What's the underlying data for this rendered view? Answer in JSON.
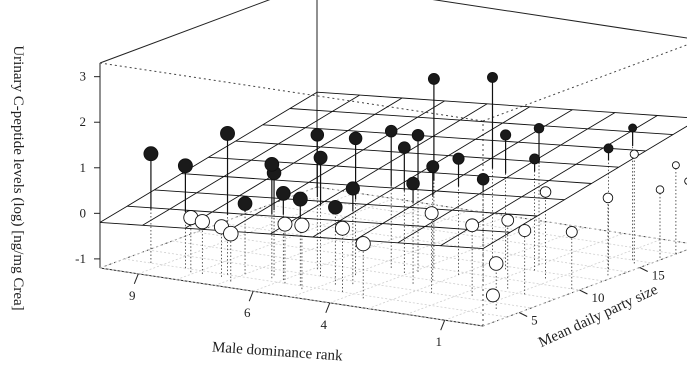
{
  "chart_data": {
    "type": "scatter",
    "subtype": "3d-scatter-with-regression-plane",
    "title": "",
    "zlabel": "Urinary C-peptide levels (log) [ng/mg Crea]",
    "xlabel": "Male dominance rank",
    "ylabel": "Mean daily party size",
    "z_ticks": [
      "-1",
      "0",
      "1",
      "2",
      "3"
    ],
    "x_ticks": [
      "9",
      "6",
      "4",
      "1"
    ],
    "y_ticks": [
      "5",
      "10",
      "15"
    ],
    "zlim": [
      -1.2,
      3.3
    ],
    "xlim": [
      10,
      0
    ],
    "ylim": [
      2,
      20
    ],
    "grid_floor": true,
    "regression_plane": true,
    "drop_lines": true,
    "marker_fill": {
      "above_plane": "#1a1a1a",
      "below_plane": "#ffffff"
    },
    "points": [
      {
        "rank": 9.3,
        "party": 4.0,
        "z": 1.2
      },
      {
        "rank": 8.4,
        "party": 4.0,
        "z": 1.05
      },
      {
        "rank": 8.1,
        "party": 3.5,
        "z": 0.0
      },
      {
        "rank": 7.8,
        "party": 3.5,
        "z": -0.05
      },
      {
        "rank": 7.3,
        "party": 4.0,
        "z": 1.9
      },
      {
        "rank": 7.3,
        "party": 3.5,
        "z": -0.1
      },
      {
        "rank": 7.0,
        "party": 4.5,
        "z": 0.35
      },
      {
        "rank": 6.9,
        "party": 3.0,
        "z": -0.15
      },
      {
        "rank": 6.4,
        "party": 5.0,
        "z": 1.05
      },
      {
        "rank": 6.3,
        "party": 4.5,
        "z": 1.3
      },
      {
        "rank": 6.0,
        "party": 4.5,
        "z": 0.7
      },
      {
        "rank": 5.8,
        "party": 4.0,
        "z": 0.1
      },
      {
        "rank": 5.9,
        "party": 7.0,
        "z": 1.75
      },
      {
        "rank": 5.5,
        "party": 6.0,
        "z": 1.4
      },
      {
        "rank": 5.4,
        "party": 4.0,
        "z": 0.7
      },
      {
        "rank": 5.2,
        "party": 3.5,
        "z": 0.2
      },
      {
        "rank": 4.9,
        "party": 7.0,
        "z": 1.8
      },
      {
        "rank": 4.8,
        "party": 5.0,
        "z": 0.5
      },
      {
        "rank": 4.6,
        "party": 9.0,
        "z": 1.8
      },
      {
        "rank": 4.5,
        "party": 5.5,
        "z": 0.9
      },
      {
        "rank": 4.3,
        "party": 4.0,
        "z": 0.2
      },
      {
        "rank": 4.1,
        "party": 8.5,
        "z": 1.55
      },
      {
        "rank": 3.9,
        "party": 9.0,
        "z": 1.8
      },
      {
        "rank": 3.8,
        "party": 10.0,
        "z": 2.95
      },
      {
        "rank": 3.6,
        "party": 3.5,
        "z": 0.0
      },
      {
        "rank": 3.4,
        "party": 7.0,
        "z": 1.0
      },
      {
        "rank": 3.2,
        "party": 8.0,
        "z": 1.3
      },
      {
        "rank": 3.0,
        "party": 9.5,
        "z": 1.35
      },
      {
        "rank": 2.9,
        "party": 12.0,
        "z": 2.9
      },
      {
        "rank": 2.6,
        "party": 6.0,
        "z": 0.55
      },
      {
        "rank": 2.4,
        "party": 11.5,
        "z": 1.75
      },
      {
        "rank": 2.2,
        "party": 9.0,
        "z": 1.05
      },
      {
        "rank": 2.0,
        "party": 13.0,
        "z": 1.8
      },
      {
        "rank": 1.8,
        "party": 12.0,
        "z": 1.25
      },
      {
        "rank": 1.7,
        "party": 6.5,
        "z": 0.35
      },
      {
        "rank": 1.4,
        "party": 8.5,
        "z": 0.3
      },
      {
        "rank": 1.2,
        "party": 11.0,
        "z": 0.7
      },
      {
        "rank": 1.0,
        "party": 6.0,
        "z": -1.05
      },
      {
        "rank": 0.8,
        "party": 8.0,
        "z": 0.2
      },
      {
        "rank": 0.6,
        "party": 5.0,
        "z": -0.2
      },
      {
        "rank": 0.5,
        "party": 14.0,
        "z": 1.45
      },
      {
        "rank": 0.5,
        "party": 16.0,
        "z": 1.7
      },
      {
        "rank": 0.3,
        "party": 15.5,
        "z": 1.2
      },
      {
        "rank": 0.2,
        "party": 13.0,
        "z": 0.5
      },
      {
        "rank": 0.1,
        "party": 17.0,
        "z": 0.3
      },
      {
        "rank": 0.0,
        "party": 18.0,
        "z": 0.75
      },
      {
        "rank": 0.0,
        "party": 19.0,
        "z": 0.3
      },
      {
        "rank": 0.2,
        "party": 10.0,
        "z": 0.05
      }
    ]
  }
}
